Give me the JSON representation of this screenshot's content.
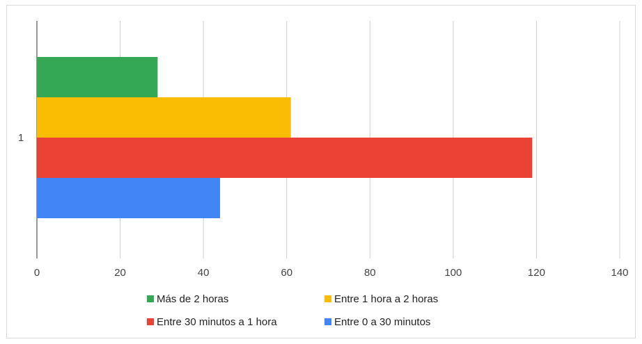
{
  "chart_data": {
    "type": "bar",
    "orientation": "horizontal",
    "categories": [
      "1"
    ],
    "series": [
      {
        "name": "Más de 2 horas",
        "color": "#34a853",
        "values": [
          29
        ]
      },
      {
        "name": "Entre 1 hora a 2 horas",
        "color": "#fbbc04",
        "values": [
          61
        ]
      },
      {
        "name": "Entre 30 minutos a 1 hora",
        "color": "#ea4335",
        "values": [
          119
        ]
      },
      {
        "name": "Entre 0 a 30 minutos",
        "color": "#4285f4",
        "values": [
          44
        ]
      }
    ],
    "xlim": [
      0,
      140
    ],
    "x_ticks": [
      0,
      20,
      40,
      60,
      80,
      100,
      120,
      140
    ],
    "title": "",
    "xlabel": "",
    "ylabel": "",
    "grid": "vertical",
    "legend_position": "bottom"
  }
}
